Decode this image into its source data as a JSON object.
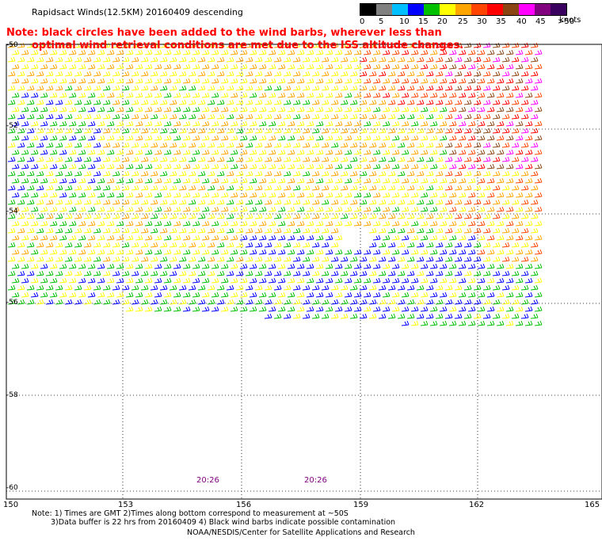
{
  "title": "Rapidsact Winds(12.5KM) 20160409 descending",
  "note": {
    "line1": "Note: black circles have been added to the wind barbs, wherever less than",
    "line2": "optimal wind retrieval conditions are met due to the ISS altitude changes."
  },
  "speed_scale": {
    "unit": "knots",
    "labels": [
      "0",
      "5",
      "10",
      "15",
      "20",
      "25",
      "30",
      "35",
      "40",
      "45",
      ">50"
    ],
    "colors": [
      "#000000",
      "#808080",
      "#00bfff",
      "#0000ff",
      "#00c000",
      "#ffff00",
      "#ffa500",
      "#ff4500",
      "#ff0000",
      "#8b4513",
      "#ff00ff",
      "#800080",
      "#3a0060"
    ]
  },
  "axes": {
    "longitude_labels": [
      "150",
      "153",
      "156",
      "159",
      "162",
      "165"
    ],
    "latitude_labels": [
      "-50",
      "-52",
      "-54",
      "-56",
      "-58",
      "-60"
    ]
  },
  "time_labels": [
    "20:26",
    "20:26"
  ],
  "footnotes": {
    "line1": "Note: 1) Times are GMT 2)Times along bottom correspond to measurement at ~50S",
    "line2": "3)Data buffer is 22 hrs from 20160409 4) Black wind barbs indicate possible contamination"
  },
  "credit": "NOAA/NESDIS/Center for Satellite Applications and Research"
}
